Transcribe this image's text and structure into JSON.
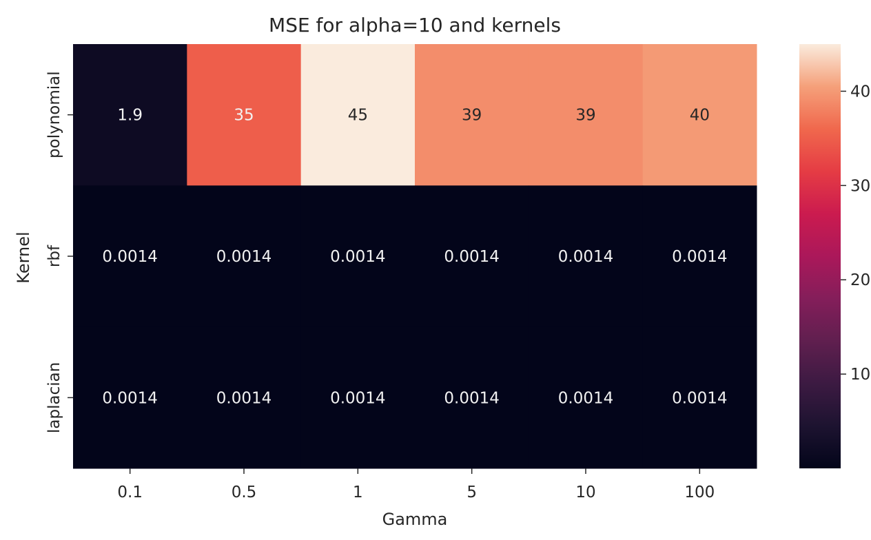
{
  "chart_data": {
    "type": "heatmap",
    "title": "MSE for alpha=10 and kernels",
    "xlabel": "Gamma",
    "ylabel": "Kernel",
    "x_categories": [
      "0.1",
      "0.5",
      "1",
      "5",
      "10",
      "100"
    ],
    "y_categories": [
      "polynomial",
      "rbf",
      "laplacian"
    ],
    "values": [
      [
        1.9,
        35,
        45,
        39,
        39,
        40
      ],
      [
        0.0014,
        0.0014,
        0.0014,
        0.0014,
        0.0014,
        0.0014
      ],
      [
        0.0014,
        0.0014,
        0.0014,
        0.0014,
        0.0014,
        0.0014
      ]
    ],
    "annotations": [
      [
        "1.9",
        "35",
        "45",
        "39",
        "39",
        "40"
      ],
      [
        "0.0014",
        "0.0014",
        "0.0014",
        "0.0014",
        "0.0014",
        "0.0014"
      ],
      [
        "0.0014",
        "0.0014",
        "0.0014",
        "0.0014",
        "0.0014",
        "0.0014"
      ]
    ],
    "colormap": "rocket",
    "colorbar": {
      "range": [
        0.0014,
        45
      ],
      "ticks": [
        10,
        20,
        30,
        40
      ],
      "tick_labels": [
        "10",
        "20",
        "30",
        "40"
      ]
    },
    "grid": false
  }
}
